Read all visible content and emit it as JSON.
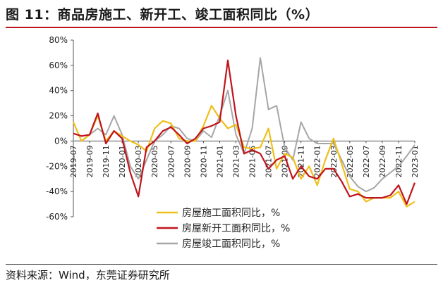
{
  "figure": {
    "title": "图 11：商品房施工、新开工、竣工面积同比（%）",
    "source": "资料来源：Wind，东莞证券研究所"
  },
  "colors": {
    "construction": "#f0bf1a",
    "new_starts": "#c0141c",
    "completion": "#a6a6a6",
    "title_rule": "#b8121b"
  },
  "chart_data": {
    "type": "line",
    "title": "",
    "xlabel": "",
    "ylabel": "",
    "ylim": [
      -60,
      80
    ],
    "yticks": [
      -60,
      -40,
      -20,
      0,
      20,
      40,
      60,
      80
    ],
    "ytick_labels": [
      "-60%",
      "-40%",
      "-20%",
      "0%",
      "20%",
      "40%",
      "60%",
      "80%"
    ],
    "xtick_labels": [
      "2019-07",
      "2019-09",
      "2019-11",
      "2020-01",
      "2020-03",
      "2020-05",
      "2020-07",
      "2020-09",
      "2020-11",
      "2021-01",
      "2021-03",
      "2021-05",
      "2021-07",
      "2021-09",
      "2021-11",
      "2022-01",
      "2022-03",
      "2022-05",
      "2022-07",
      "2022-09",
      "2022-11",
      "2023-01"
    ],
    "x": [
      "2019-07",
      "2019-08",
      "2019-09",
      "2019-10",
      "2019-11",
      "2019-12",
      "2020-01",
      "2020-02",
      "2020-03",
      "2020-04",
      "2020-05",
      "2020-06",
      "2020-07",
      "2020-08",
      "2020-09",
      "2020-10",
      "2020-11",
      "2020-12",
      "2021-01",
      "2021-02",
      "2021-03",
      "2021-04",
      "2021-05",
      "2021-06",
      "2021-07",
      "2021-08",
      "2021-09",
      "2021-10",
      "2021-11",
      "2021-12",
      "2022-01",
      "2022-02",
      "2022-03",
      "2022-04",
      "2022-05",
      "2022-06",
      "2022-07",
      "2022-08",
      "2022-09",
      "2022-10",
      "2022-11",
      "2022-12",
      "2023-01"
    ],
    "series": [
      {
        "name": "房屋施工面积同比，%",
        "color": "#f0bf1a",
        "values": [
          15,
          0,
          5,
          20,
          0,
          8,
          4,
          0,
          -3,
          -8,
          10,
          16,
          14,
          2,
          0,
          0,
          12,
          28,
          18,
          10,
          13,
          -5,
          -6,
          -5,
          10,
          -22,
          -10,
          -13,
          -30,
          -20,
          -35,
          -15,
          2,
          -18,
          -38,
          -40,
          -48,
          -45,
          -45,
          -45,
          -40,
          -52,
          -48
        ]
      },
      {
        "name": "房屋新开工面积同比，%",
        "color": "#c0141c",
        "values": [
          6,
          4,
          5,
          22,
          -2,
          8,
          2,
          -25,
          -44,
          -5,
          0,
          8,
          11,
          5,
          -2,
          2,
          10,
          12,
          15,
          64,
          20,
          -10,
          -7,
          -10,
          -22,
          -15,
          -12,
          -30,
          -20,
          -28,
          -30,
          -22,
          -22,
          -32,
          -44,
          -42,
          -45,
          -45,
          -45,
          -43,
          -35,
          -50,
          -33
        ]
      },
      {
        "name": "房屋竣工面积同比，%",
        "color": "#a6a6a6",
        "values": [
          0,
          0,
          5,
          10,
          5,
          20,
          5,
          -20,
          -30,
          -15,
          0,
          5,
          12,
          10,
          2,
          0,
          8,
          3,
          20,
          40,
          5,
          -10,
          10,
          66,
          25,
          28,
          -5,
          -15,
          15,
          2,
          -2,
          -2,
          -2,
          -15,
          -28,
          -36,
          -40,
          -37,
          -30,
          -25,
          -20,
          -12,
          -3
        ]
      }
    ],
    "legend_position": "bottom-center",
    "grid": false
  }
}
